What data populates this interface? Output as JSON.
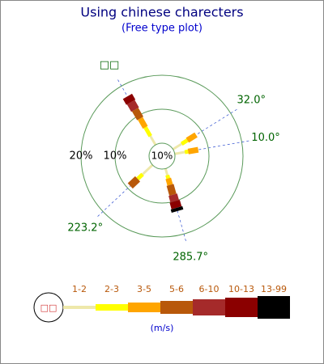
{
  "chart_data": {
    "type": "windrose",
    "title": "Using chinese charecters",
    "subtitle": "(Free type plot)",
    "center_label": "10%",
    "rlim": [
      0,
      20
    ],
    "rticks": [
      {
        "value": 10,
        "label": "10%"
      },
      {
        "value": 20,
        "label": "20%"
      }
    ],
    "directions": [
      {
        "value": 120,
        "label": "□□"
      },
      {
        "value": 32,
        "label": "32.0°"
      },
      {
        "value": 10,
        "label": "10.0°"
      },
      {
        "value": 223.2,
        "label": "223.2°"
      },
      {
        "value": 285.7,
        "label": "285.7°"
      }
    ],
    "series": [
      {
        "name": "1-2",
        "color": "#eee8aa",
        "values": [
          3,
          3,
          3,
          4,
          2
        ]
      },
      {
        "name": "2-3",
        "color": "#ffff00",
        "values": [
          3,
          2,
          1,
          2,
          1
        ]
      },
      {
        "name": "3-5",
        "color": "#ffa500",
        "values": [
          3,
          3,
          3,
          0,
          2
        ]
      },
      {
        "name": "5-6",
        "color": "#b8580a",
        "values": [
          3,
          0,
          0,
          3,
          3
        ]
      },
      {
        "name": "6-10",
        "color": "#a52a2a",
        "values": [
          2.5,
          0,
          0,
          0,
          2
        ]
      },
      {
        "name": "10-13",
        "color": "#8b0000",
        "values": [
          2,
          0,
          0,
          0,
          2
        ]
      },
      {
        "name": "13-99",
        "color": "#000000",
        "values": [
          0,
          0,
          0,
          0,
          1
        ]
      }
    ],
    "legend_label": "□□",
    "legend_unit": "(m/s)"
  }
}
